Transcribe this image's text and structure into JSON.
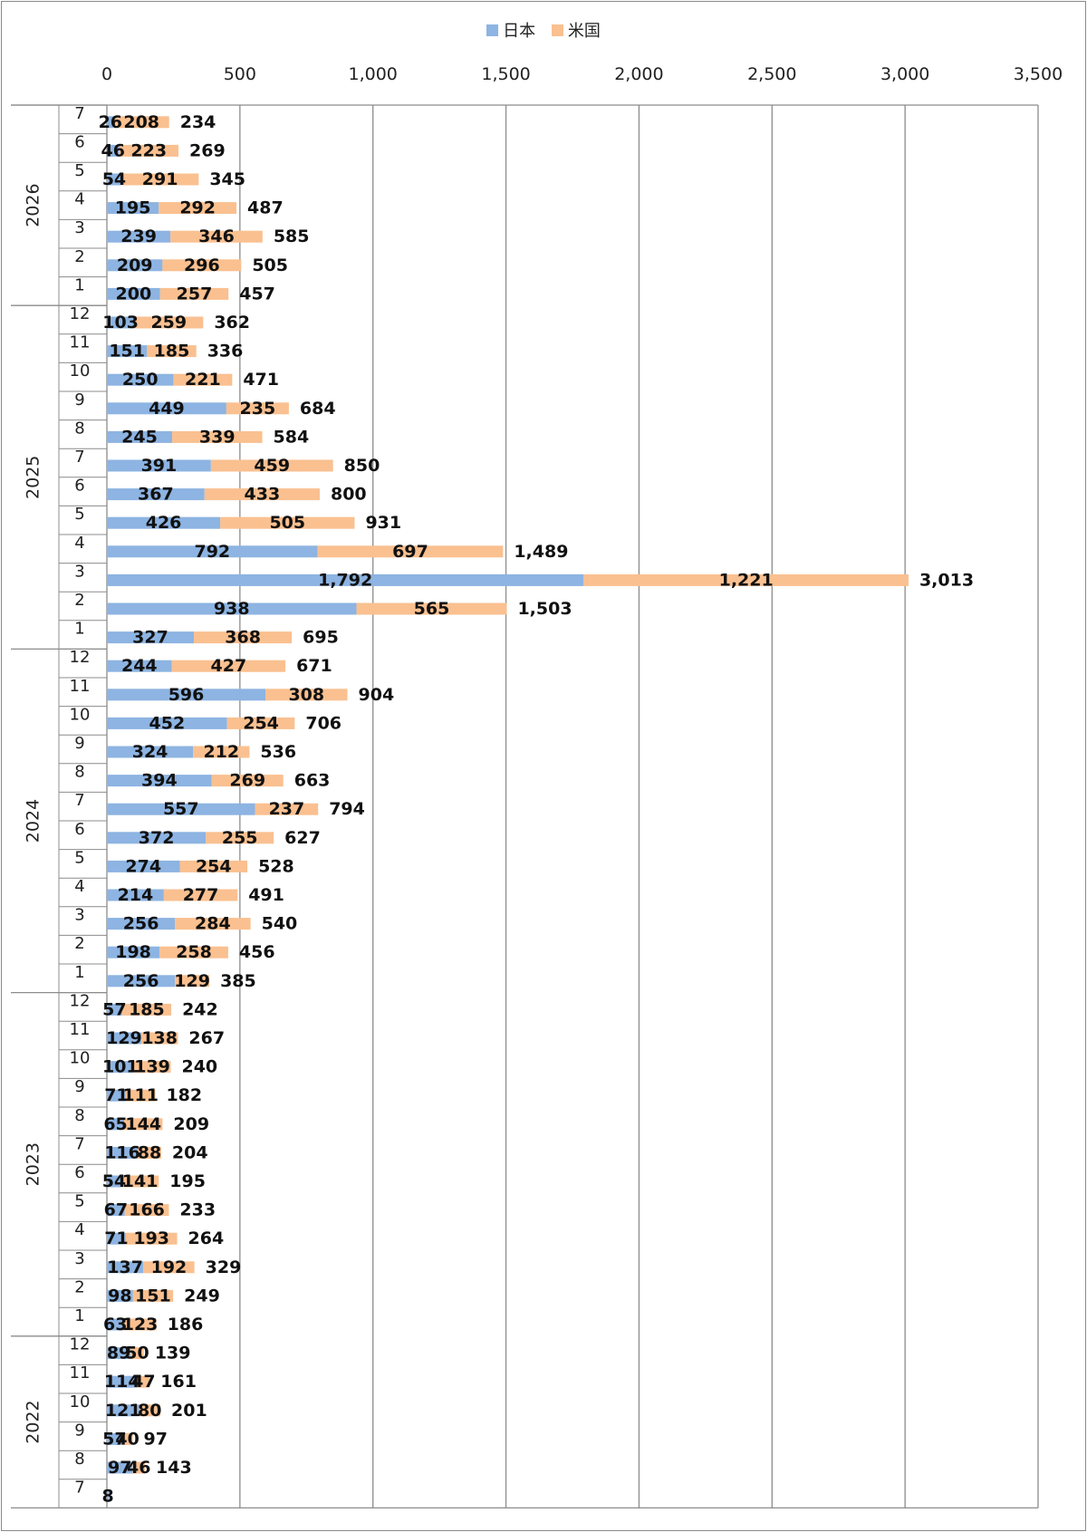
{
  "chart_data": {
    "type": "bar",
    "orientation": "horizontal",
    "stacked": true,
    "xlim": [
      0,
      3500
    ],
    "x_ticks": [
      "0",
      "500",
      "1,000",
      "1,500",
      "2,000",
      "2,500",
      "3,000",
      "3,500"
    ],
    "legend_position": "top",
    "grid": "vertical",
    "series": [
      {
        "name": "日本",
        "color": "#8db4e2"
      },
      {
        "name": "米国",
        "color": "#fac090"
      }
    ],
    "groups": [
      {
        "year": "2026",
        "rows": [
          {
            "month": "7",
            "jp": 26,
            "us": 208,
            "total": 234
          },
          {
            "month": "6",
            "jp": 46,
            "us": 223,
            "total": 269
          },
          {
            "month": "5",
            "jp": 54,
            "us": 291,
            "total": 345
          },
          {
            "month": "4",
            "jp": 195,
            "us": 292,
            "total": 487
          },
          {
            "month": "3",
            "jp": 239,
            "us": 346,
            "total": 585
          },
          {
            "month": "2",
            "jp": 209,
            "us": 296,
            "total": 505
          },
          {
            "month": "1",
            "jp": 200,
            "us": 257,
            "total": 457
          }
        ]
      },
      {
        "year": "2025",
        "rows": [
          {
            "month": "12",
            "jp": 103,
            "us": 259,
            "total": 362
          },
          {
            "month": "11",
            "jp": 151,
            "us": 185,
            "total": 336
          },
          {
            "month": "10",
            "jp": 250,
            "us": 221,
            "total": 471
          },
          {
            "month": "9",
            "jp": 449,
            "us": 235,
            "total": 684
          },
          {
            "month": "8",
            "jp": 245,
            "us": 339,
            "total": 584
          },
          {
            "month": "7",
            "jp": 391,
            "us": 459,
            "total": 850
          },
          {
            "month": "6",
            "jp": 367,
            "us": 433,
            "total": 800
          },
          {
            "month": "5",
            "jp": 426,
            "us": 505,
            "total": 931
          },
          {
            "month": "4",
            "jp": 792,
            "us": 697,
            "total": 1489
          },
          {
            "month": "3",
            "jp": 1792,
            "us": 1221,
            "total": 3013
          },
          {
            "month": "2",
            "jp": 938,
            "us": 565,
            "total": 1503
          },
          {
            "month": "1",
            "jp": 327,
            "us": 368,
            "total": 695
          }
        ]
      },
      {
        "year": "2024",
        "rows": [
          {
            "month": "12",
            "jp": 244,
            "us": 427,
            "total": 671
          },
          {
            "month": "11",
            "jp": 596,
            "us": 308,
            "total": 904
          },
          {
            "month": "10",
            "jp": 452,
            "us": 254,
            "total": 706
          },
          {
            "month": "9",
            "jp": 324,
            "us": 212,
            "total": 536
          },
          {
            "month": "8",
            "jp": 394,
            "us": 269,
            "total": 663
          },
          {
            "month": "7",
            "jp": 557,
            "us": 237,
            "total": 794
          },
          {
            "month": "6",
            "jp": 372,
            "us": 255,
            "total": 627
          },
          {
            "month": "5",
            "jp": 274,
            "us": 254,
            "total": 528
          },
          {
            "month": "4",
            "jp": 214,
            "us": 277,
            "total": 491
          },
          {
            "month": "3",
            "jp": 256,
            "us": 284,
            "total": 540
          },
          {
            "month": "2",
            "jp": 198,
            "us": 258,
            "total": 456
          },
          {
            "month": "1",
            "jp": 256,
            "us": 129,
            "total": 385
          }
        ]
      },
      {
        "year": "2023",
        "rows": [
          {
            "month": "12",
            "jp": 57,
            "us": 185,
            "total": 242
          },
          {
            "month": "11",
            "jp": 129,
            "us": 138,
            "total": 267
          },
          {
            "month": "10",
            "jp": 101,
            "us": 139,
            "total": 240
          },
          {
            "month": "9",
            "jp": 71,
            "us": 111,
            "total": 182
          },
          {
            "month": "8",
            "jp": 65,
            "us": 144,
            "total": 209
          },
          {
            "month": "7",
            "jp": 116,
            "us": 88,
            "total": 204
          },
          {
            "month": "6",
            "jp": 54,
            "us": 141,
            "total": 195
          },
          {
            "month": "5",
            "jp": 67,
            "us": 166,
            "total": 233
          },
          {
            "month": "4",
            "jp": 71,
            "us": 193,
            "total": 264
          },
          {
            "month": "3",
            "jp": 137,
            "us": 192,
            "total": 329
          },
          {
            "month": "2",
            "jp": 98,
            "us": 151,
            "total": 249
          },
          {
            "month": "1",
            "jp": 63,
            "us": 123,
            "total": 186
          }
        ]
      },
      {
        "year": "2022",
        "rows": [
          {
            "month": "12",
            "jp": 89,
            "us": 50,
            "total": 139
          },
          {
            "month": "11",
            "jp": 114,
            "us": 47,
            "total": 161
          },
          {
            "month": "10",
            "jp": 121,
            "us": 80,
            "total": 201
          },
          {
            "month": "9",
            "jp": 57,
            "us": 40,
            "total": 97
          },
          {
            "month": "8",
            "jp": 97,
            "us": 46,
            "total": 143
          },
          {
            "month": "7",
            "jp": 8,
            "us": null,
            "total": null
          }
        ]
      }
    ]
  }
}
